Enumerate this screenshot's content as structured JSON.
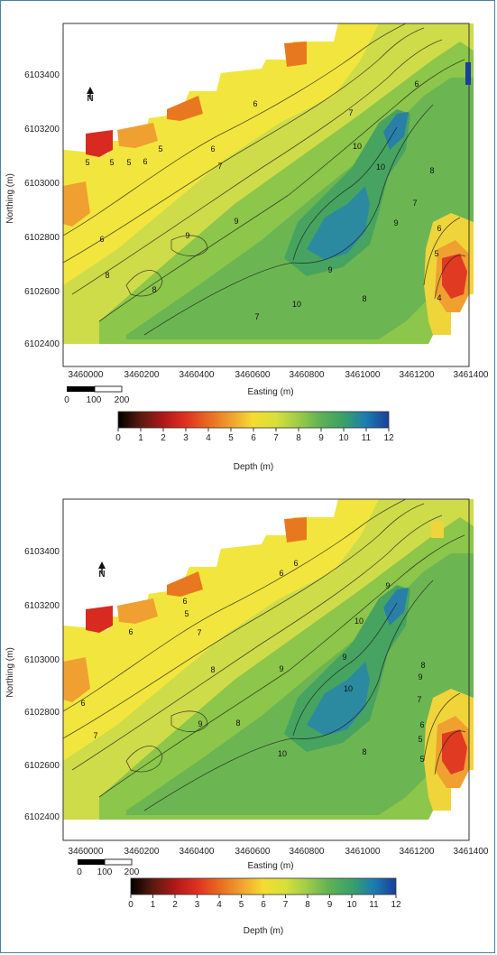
{
  "maps": [
    {
      "id": "map-a",
      "north_label": "N",
      "y_axis_label": "Northing (m)",
      "x_axis_label": "Easting (m)",
      "y_ticks": [
        "6103400",
        "6103200",
        "6103000",
        "6102800",
        "6102600",
        "6102400"
      ],
      "x_ticks": [
        "3460000",
        "3460200",
        "3460400",
        "3460600",
        "3460800",
        "3461000",
        "3461200",
        "3461400"
      ],
      "scale_bar_ticks": [
        "0",
        "100",
        "200"
      ],
      "colorbar_ticks": [
        "0",
        "1",
        "2",
        "3",
        "4",
        "5",
        "6",
        "7",
        "8",
        "9",
        "10",
        "11",
        "12"
      ],
      "colorbar_title": "Depth (m)",
      "contour_labels": [
        "5",
        "5",
        "5",
        "5",
        "6",
        "6",
        "6",
        "6",
        "7",
        "7",
        "8",
        "8",
        "9",
        "9",
        "9",
        "10",
        "10",
        "10",
        "6",
        "7",
        "8",
        "6",
        "5",
        "4",
        "9",
        "8",
        "7"
      ]
    },
    {
      "id": "map-b",
      "north_label": "N",
      "y_axis_label": "Northing (m)",
      "x_axis_label": "Easting (m)",
      "y_ticks": [
        "6103400",
        "6103200",
        "6103000",
        "6102800",
        "6102600",
        "6102400"
      ],
      "x_ticks": [
        "3460000",
        "3460200",
        "3460400",
        "3460600",
        "3460800",
        "3461000",
        "3461200",
        "3461400"
      ],
      "scale_bar_ticks": [
        "0",
        "100",
        "200"
      ],
      "colorbar_ticks": [
        "0",
        "1",
        "2",
        "3",
        "4",
        "5",
        "6",
        "7",
        "8",
        "9",
        "10",
        "11",
        "12"
      ],
      "colorbar_title": "Depth (m)",
      "contour_labels": [
        "6",
        "6",
        "5",
        "6",
        "7",
        "8",
        "9",
        "9",
        "10",
        "9",
        "10",
        "9",
        "10",
        "8",
        "8",
        "7",
        "6",
        "9",
        "8",
        "7",
        "6",
        "6",
        "5",
        "5"
      ]
    }
  ],
  "colors": {
    "frame": "#4a7fa0",
    "depth_scale": [
      "#000000",
      "#5a1a10",
      "#b01818",
      "#e03020",
      "#e86a20",
      "#f0a030",
      "#f5dc30",
      "#d7e03a",
      "#9ccc48",
      "#5fb055",
      "#3aa068",
      "#1b7cb0",
      "#1a3e9a"
    ]
  }
}
